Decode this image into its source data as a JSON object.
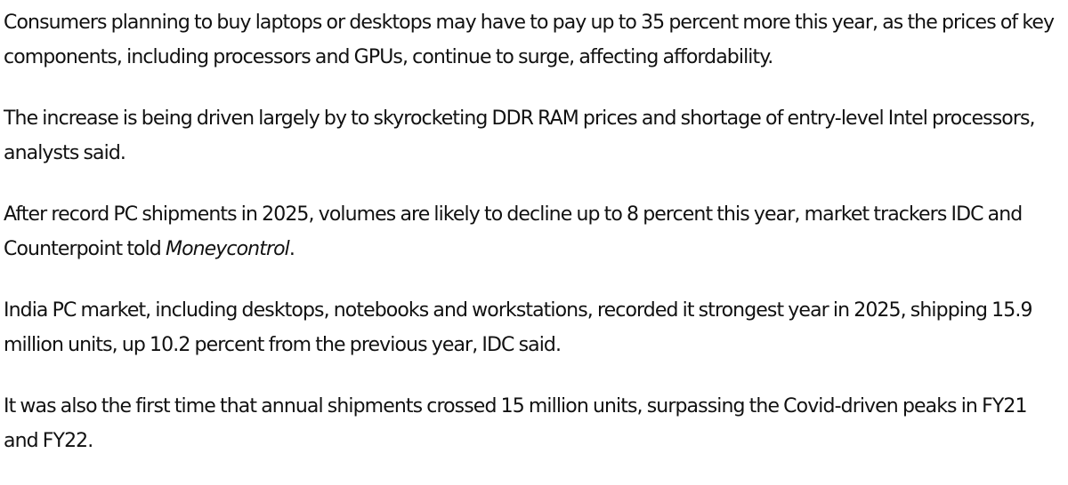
{
  "article": {
    "paragraphs": [
      {
        "text": "Consumers planning to buy laptops or desktops may have to pay up to 35 percent more this year, as the prices of key components, including processors and GPUs, continue to surge, affecting affordability."
      },
      {
        "text": "The increase is being driven largely by to skyrocketing DDR RAM prices and shortage of entry-level Intel processors, analysts said."
      },
      {
        "text_before": "After record PC shipments in 2025, volumes are likely to decline up to 8 percent this year, market trackers IDC and Counterpoint told ",
        "publication": "Moneycontrol",
        "text_after": "."
      },
      {
        "text": "India PC market, including desktops, notebooks and workstations, recorded it strongest year in 2025, shipping 15.9 million units, up 10.2 percent from the previous year, IDC said."
      },
      {
        "text": "It was also the first time that annual shipments crossed 15 million units, surpassing the Covid-driven peaks in FY21 and FY22."
      }
    ]
  }
}
